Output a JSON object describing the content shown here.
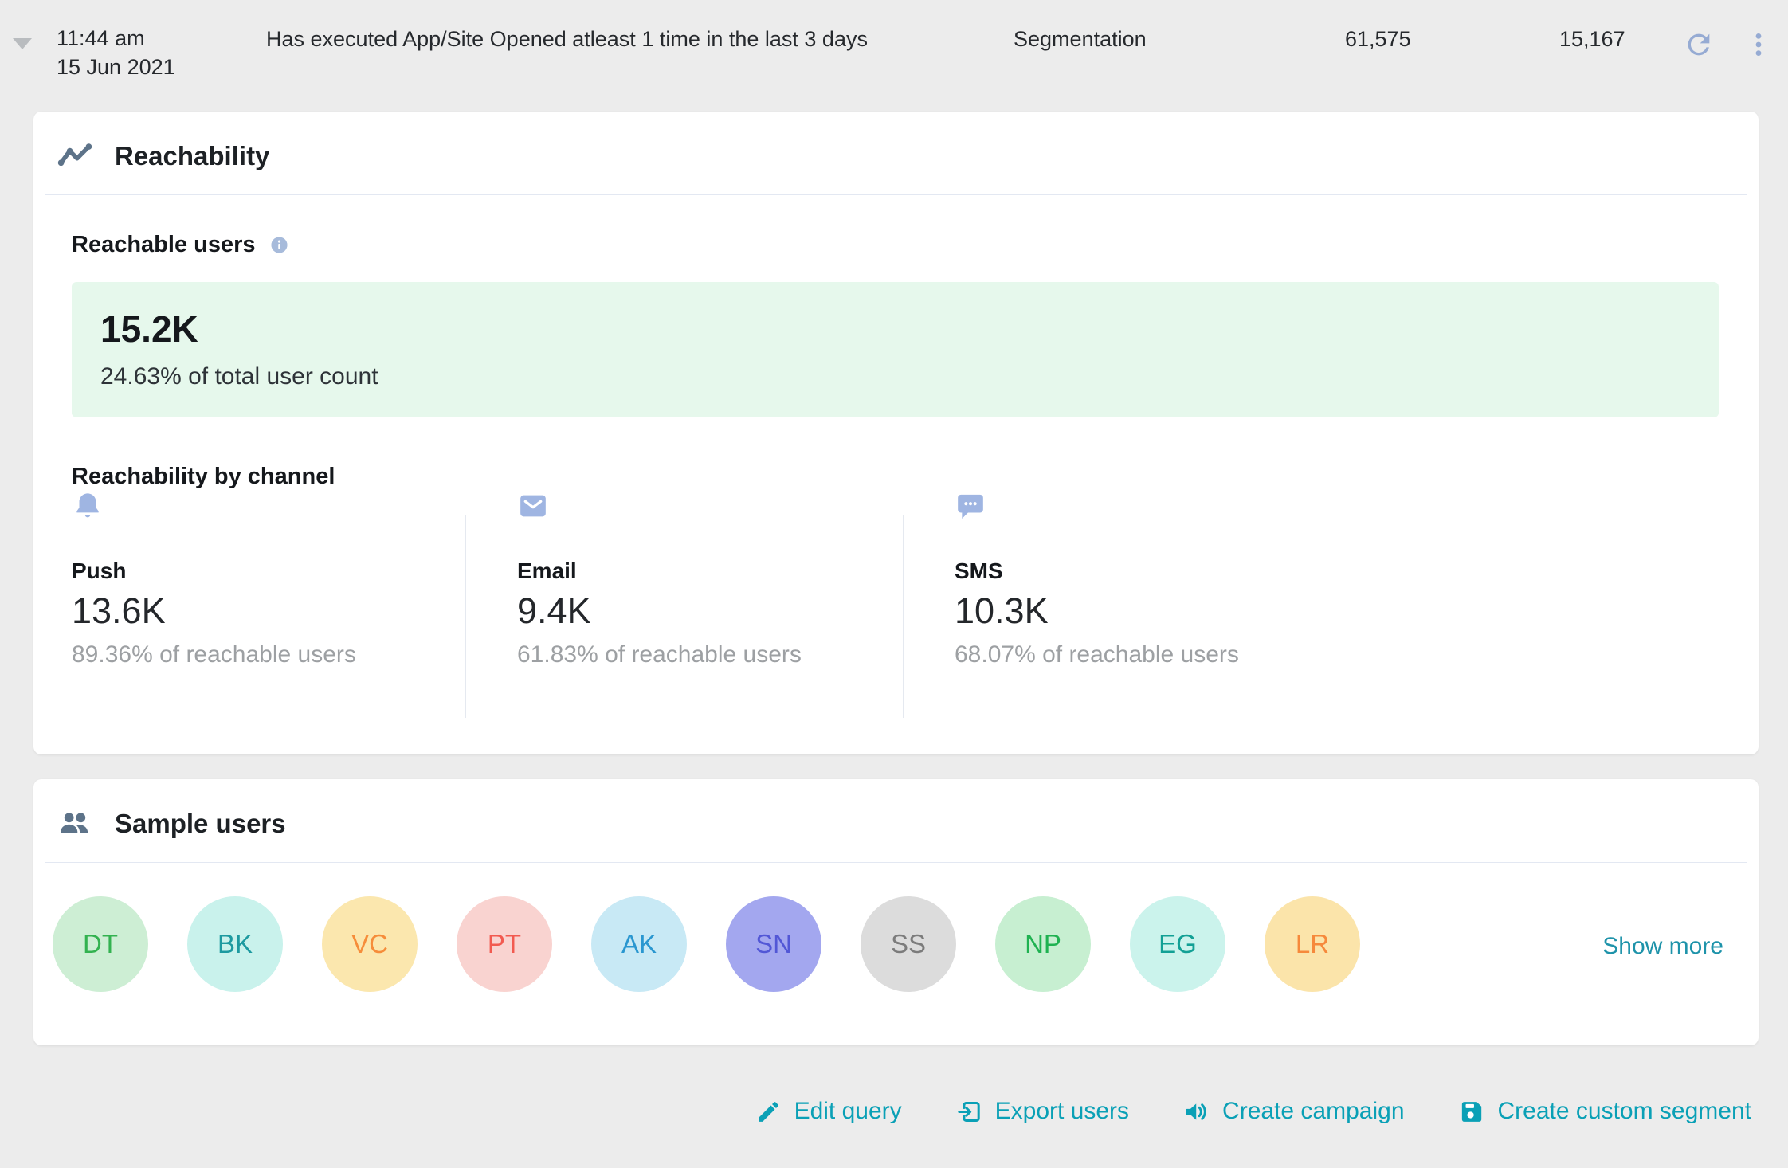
{
  "topbar": {
    "time": "11:44 am",
    "date": "15 Jun 2021",
    "query": "Has executed App/Site Opened atleast 1 time in the last 3 days",
    "type_label": "Segmentation",
    "total_users": "61,575",
    "matched_users": "15,167"
  },
  "reachability": {
    "title": "Reachability",
    "reachable_users_label": "Reachable users",
    "summary": {
      "value": "15.2K",
      "caption": "24.63% of total user count"
    },
    "by_channel_label": "Reachability by channel",
    "channels": [
      {
        "name": "Push",
        "value": "13.6K",
        "caption": "89.36% of reachable users",
        "icon": "bell-icon"
      },
      {
        "name": "Email",
        "value": "9.4K",
        "caption": "61.83% of reachable users",
        "icon": "envelope-icon"
      },
      {
        "name": "SMS",
        "value": "10.3K",
        "caption": "68.07% of reachable users",
        "icon": "chat-bubble-icon"
      }
    ]
  },
  "sample_users": {
    "title": "Sample users",
    "show_more_label": "Show more",
    "avatars": [
      {
        "initials": "DT",
        "bg": "#cdeed4",
        "fg": "#33b250"
      },
      {
        "initials": "BK",
        "bg": "#c9f2ec",
        "fg": "#1d9aa0"
      },
      {
        "initials": "VC",
        "bg": "#fbe7ae",
        "fg": "#f68d3a"
      },
      {
        "initials": "PT",
        "bg": "#f9d3d0",
        "fg": "#f25a50"
      },
      {
        "initials": "AK",
        "bg": "#c8e9f5",
        "fg": "#2a97d0"
      },
      {
        "initials": "SN",
        "bg": "#a3a7ef",
        "fg": "#5257d6"
      },
      {
        "initials": "SS",
        "bg": "#dcdcdc",
        "fg": "#7c7c7c"
      },
      {
        "initials": "NP",
        "bg": "#c7efd1",
        "fg": "#1fb251"
      },
      {
        "initials": "EG",
        "bg": "#cbf3ec",
        "fg": "#12a095"
      },
      {
        "initials": "LR",
        "bg": "#fbe4aa",
        "fg": "#f6893b"
      }
    ]
  },
  "actions": [
    {
      "label": "Edit query",
      "icon": "pencil-icon"
    },
    {
      "label": "Export users",
      "icon": "export-icon"
    },
    {
      "label": "Create campaign",
      "icon": "megaphone-icon"
    },
    {
      "label": "Create custom segment",
      "icon": "save-icon"
    }
  ],
  "colors": {
    "teal": "#0aa0b6",
    "slate": "#5d7389",
    "channel-icon": "#9fb5e2",
    "info": "#a7bbdb",
    "muted-icon": "#96abd3",
    "green-bg": "#e6f8ec",
    "page-bg": "#ececec",
    "divider": "#e3e8f2",
    "gray-text": "#9da0a3",
    "dark-text": "#16191d"
  }
}
